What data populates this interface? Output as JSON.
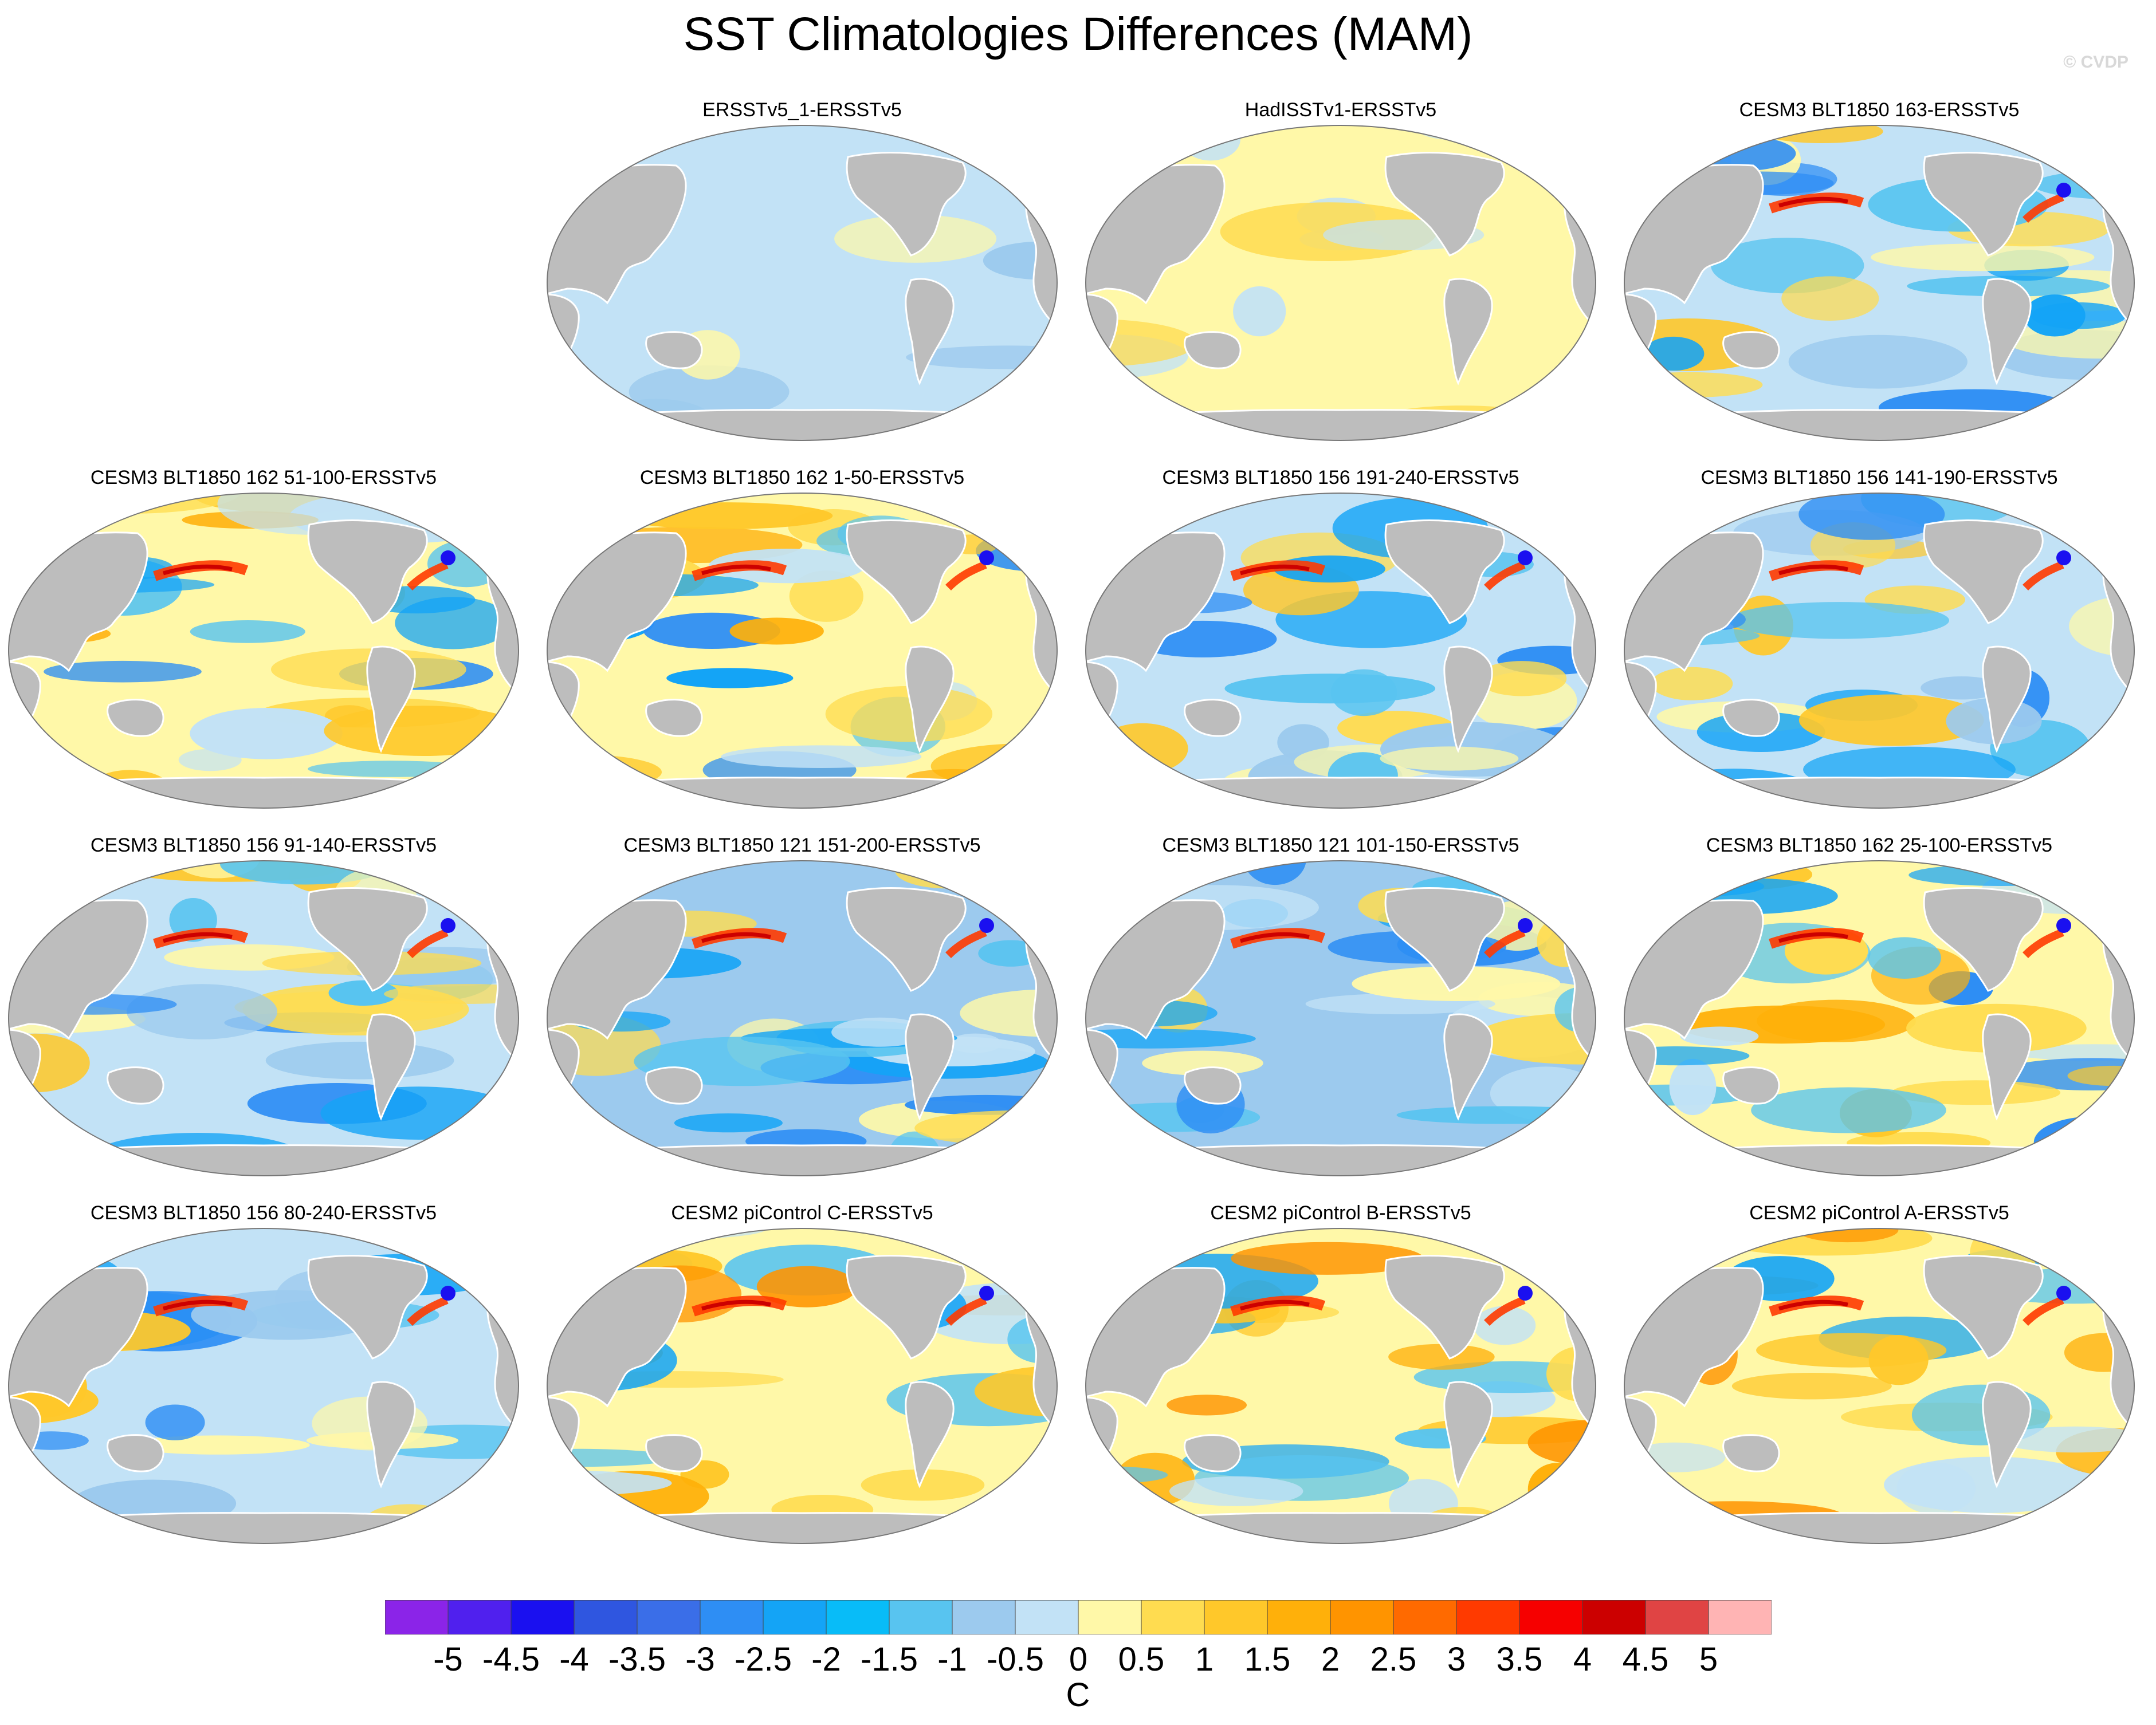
{
  "title": "SST Climatologies Differences (MAM)",
  "credit": "© CVDP",
  "colors": {
    "land": "#bdbdbd",
    "coast": "#ffffff",
    "ocean_outline": "#777777"
  },
  "panels": [
    {
      "title": "ERSSTv5_1-ERSSTv5",
      "pattern": "uniform-cool"
    },
    {
      "title": "HadISSTv1-ERSSTv5",
      "pattern": "uniform-warm"
    },
    {
      "title": "CESM3 BLT1850 163-ERSSTv5",
      "pattern": "mixed-cool"
    },
    {
      "title": "CESM3 BLT1850 162 51-100-ERSSTv5",
      "pattern": "mixed-warm"
    },
    {
      "title": "CESM3 BLT1850 162 1-50-ERSSTv5",
      "pattern": "mixed-warm"
    },
    {
      "title": "CESM3 BLT1850 156 191-240-ERSSTv5",
      "pattern": "mixed-cool"
    },
    {
      "title": "CESM3 BLT1850 156 141-190-ERSSTv5",
      "pattern": "mixed-cool"
    },
    {
      "title": "CESM3 BLT1850 156 91-140-ERSSTv5",
      "pattern": "mixed-cool"
    },
    {
      "title": "CESM3 BLT1850 121 151-200-ERSSTv5",
      "pattern": "strong-cool"
    },
    {
      "title": "CESM3 BLT1850 121 101-150-ERSSTv5",
      "pattern": "strong-cool"
    },
    {
      "title": "CESM3 BLT1850 162 25-100-ERSSTv5",
      "pattern": "mixed-warm"
    },
    {
      "title": "CESM3 BLT1850 156 80-240-ERSSTv5",
      "pattern": "mixed-cool"
    },
    {
      "title": "CESM2 piControl C-ERSSTv5",
      "pattern": "warm-south"
    },
    {
      "title": "CESM2 piControl B-ERSSTv5",
      "pattern": "warm-south"
    },
    {
      "title": "CESM2 piControl A-ERSSTv5",
      "pattern": "warm-south"
    }
  ],
  "colorbar": {
    "units": "C",
    "labels": [
      "-5",
      "-4.5",
      "-4",
      "-3.5",
      "-3",
      "-2.5",
      "-2",
      "-1.5",
      "-1",
      "-0.5",
      "0",
      "0.5",
      "1",
      "1.5",
      "2",
      "2.5",
      "3",
      "3.5",
      "4",
      "4.5",
      "5"
    ],
    "colors": [
      "#8b24e8",
      "#5020ee",
      "#1a10f0",
      "#2f56e0",
      "#3a6ee8",
      "#2e8ef4",
      "#14a4f6",
      "#08bcf8",
      "#58c4f0",
      "#9ccaee",
      "#c2e2f6",
      "#fff8a8",
      "#ffdc50",
      "#ffc82a",
      "#ffb00a",
      "#ff9400",
      "#ff6a00",
      "#ff3a00",
      "#f60000",
      "#cc0000",
      "#e04444",
      "#ffb4b4"
    ]
  }
}
